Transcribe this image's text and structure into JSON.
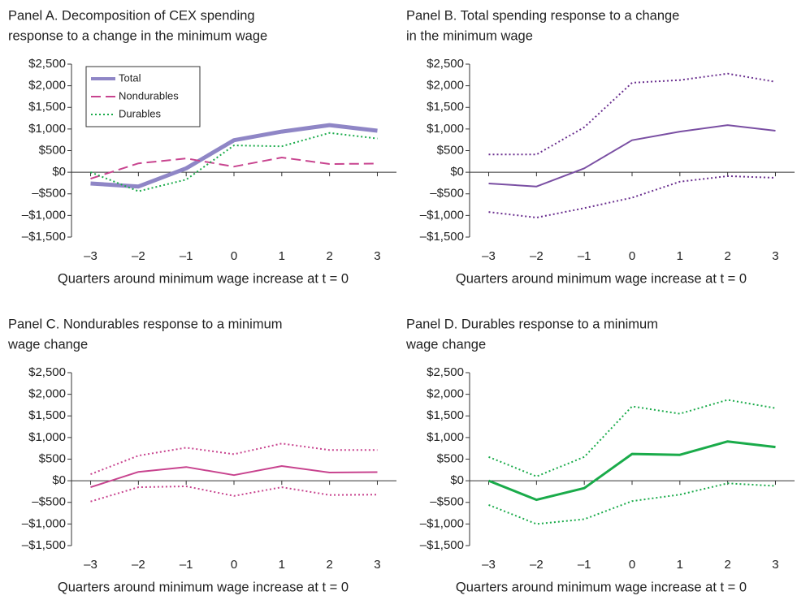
{
  "chart_data": [
    {
      "type": "line",
      "title": [
        "Panel A. Decomposition of CEX spending",
        "response to a change in the minimum wage"
      ],
      "xlabel": "Quarters around minimum wage increase at t = 0",
      "x": [
        -3,
        -2,
        -1,
        0,
        1,
        2,
        3
      ],
      "xlim": [
        -3.4,
        3.4
      ],
      "xticks": [
        {
          "value": -3,
          "label": "–3"
        },
        {
          "value": -2,
          "label": "–2"
        },
        {
          "value": -1,
          "label": "–1"
        },
        0,
        1,
        2,
        3
      ],
      "ylim": [
        -1500,
        2500
      ],
      "yticks": [
        {
          "value": -1500,
          "label": "–$1,500"
        },
        {
          "value": -1000,
          "label": "–$1,000"
        },
        {
          "value": -500,
          "label": "–$500"
        },
        {
          "value": 0,
          "label": "$0"
        },
        {
          "value": 500,
          "label": "$500"
        },
        {
          "value": 1000,
          "label": "$1,000"
        },
        {
          "value": 1500,
          "label": "$1,500"
        },
        {
          "value": 2000,
          "label": "$2,000"
        },
        {
          "value": 2500,
          "label": "$2,500"
        }
      ],
      "legend": "upper left",
      "series": [
        {
          "name": "Total",
          "color": "#8f86c6",
          "dash": "solid",
          "line_width": 5,
          "values": [
            -260,
            -330,
            90,
            740,
            940,
            1090,
            960
          ]
        },
        {
          "name": "Nondurables",
          "color": "#c8448f",
          "dash": "dashed",
          "line_width": 2,
          "values": [
            -150,
            205,
            317,
            130,
            340,
            190,
            200
          ]
        },
        {
          "name": "Durables",
          "color": "#1aab4a",
          "dash": "dotted",
          "line_width": 2,
          "values": [
            0,
            -440,
            -170,
            620,
            600,
            910,
            780
          ]
        }
      ]
    },
    {
      "type": "line",
      "title": [
        "Panel B. Total spending response to a change",
        "in the minimum wage"
      ],
      "xlabel": "Quarters around minimum wage increase at t = 0",
      "x": [
        -3,
        -2,
        -1,
        0,
        1,
        2,
        3
      ],
      "xlim": [
        -3.4,
        3.4
      ],
      "xticks": [
        {
          "value": -3,
          "label": "–3"
        },
        {
          "value": -2,
          "label": "–2"
        },
        {
          "value": -1,
          "label": "–1"
        },
        0,
        1,
        2,
        3
      ],
      "ylim": [
        -1500,
        2500
      ],
      "yticks": [
        {
          "value": -1500,
          "label": "–$1,500"
        },
        {
          "value": -1000,
          "label": "–$1,000"
        },
        {
          "value": -500,
          "label": "–$500"
        },
        {
          "value": 0,
          "label": "$0"
        },
        {
          "value": 500,
          "label": "$500"
        },
        {
          "value": 1000,
          "label": "$1,000"
        },
        {
          "value": 1500,
          "label": "$1,500"
        },
        {
          "value": 2000,
          "label": "$2,000"
        },
        {
          "value": 2500,
          "label": "$2,500"
        }
      ],
      "series": [
        {
          "color": "#7a4fa3",
          "dash": "solid",
          "line_width": 2,
          "values": [
            -260,
            -330,
            90,
            740,
            940,
            1090,
            960
          ]
        },
        {
          "color": "#6a2f8f",
          "dash": "dotted",
          "line_width": 2,
          "values": [
            410,
            410,
            1040,
            2070,
            2130,
            2280,
            2090
          ]
        },
        {
          "color": "#6a2f8f",
          "dash": "dotted",
          "line_width": 2,
          "values": [
            -920,
            -1050,
            -830,
            -590,
            -220,
            -90,
            -130
          ]
        }
      ]
    },
    {
      "type": "line",
      "title": [
        "Panel C. Nondurables response to a minimum",
        "wage change"
      ],
      "xlabel": "Quarters around minimum wage increase at t = 0",
      "x": [
        -3,
        -2,
        -1,
        0,
        1,
        2,
        3
      ],
      "xlim": [
        -3.4,
        3.4
      ],
      "xticks": [
        {
          "value": -3,
          "label": "–3"
        },
        {
          "value": -2,
          "label": "–2"
        },
        {
          "value": -1,
          "label": "–1"
        },
        0,
        1,
        2,
        3
      ],
      "ylim": [
        -1500,
        2500
      ],
      "yticks": [
        {
          "value": -1500,
          "label": "–$1,500"
        },
        {
          "value": -1000,
          "label": "–$1,000"
        },
        {
          "value": -500,
          "label": "–$500"
        },
        {
          "value": 0,
          "label": "$0"
        },
        {
          "value": 500,
          "label": "$500"
        },
        {
          "value": 1000,
          "label": "$1,000"
        },
        {
          "value": 1500,
          "label": "$1,500"
        },
        {
          "value": 2000,
          "label": "$2,000"
        },
        {
          "value": 2500,
          "label": "$2,500"
        }
      ],
      "series": [
        {
          "color": "#c8448f",
          "dash": "solid",
          "line_width": 2,
          "values": [
            -150,
            205,
            317,
            130,
            340,
            190,
            200
          ]
        },
        {
          "color": "#c8448f",
          "dash": "dotted",
          "line_width": 2,
          "values": [
            150,
            580,
            765,
            615,
            860,
            710,
            710
          ]
        },
        {
          "color": "#c8448f",
          "dash": "dotted",
          "line_width": 2,
          "values": [
            -480,
            -150,
            -130,
            -350,
            -150,
            -330,
            -320
          ]
        }
      ]
    },
    {
      "type": "line",
      "title": [
        "Panel D. Durables response to a minimum",
        "wage change"
      ],
      "xlabel": "Quarters around minimum wage increase at t = 0",
      "x": [
        -3,
        -2,
        -1,
        0,
        1,
        2,
        3
      ],
      "xlim": [
        -3.4,
        3.4
      ],
      "xticks": [
        {
          "value": -3,
          "label": "–3"
        },
        {
          "value": -2,
          "label": "–2"
        },
        {
          "value": -1,
          "label": "–1"
        },
        0,
        1,
        2,
        3
      ],
      "ylim": [
        -1500,
        2500
      ],
      "yticks": [
        {
          "value": -1500,
          "label": "–$1,500"
        },
        {
          "value": -1000,
          "label": "–$1,000"
        },
        {
          "value": -500,
          "label": "–$500"
        },
        {
          "value": 0,
          "label": "$0"
        },
        {
          "value": 500,
          "label": "$500"
        },
        {
          "value": 1000,
          "label": "$1,000"
        },
        {
          "value": 1500,
          "label": "$1,500"
        },
        {
          "value": 2000,
          "label": "$2,000"
        },
        {
          "value": 2500,
          "label": "$2,500"
        }
      ],
      "series": [
        {
          "color": "#1aab4a",
          "dash": "solid",
          "line_width": 3,
          "values": [
            0,
            -440,
            -170,
            620,
            600,
            910,
            780
          ]
        },
        {
          "color": "#1aab4a",
          "dash": "dotted",
          "line_width": 2,
          "values": [
            550,
            100,
            550,
            1720,
            1550,
            1870,
            1680
          ]
        },
        {
          "color": "#1aab4a",
          "dash": "dotted",
          "line_width": 2,
          "values": [
            -560,
            -1000,
            -890,
            -470,
            -320,
            -60,
            -120
          ]
        }
      ]
    }
  ]
}
